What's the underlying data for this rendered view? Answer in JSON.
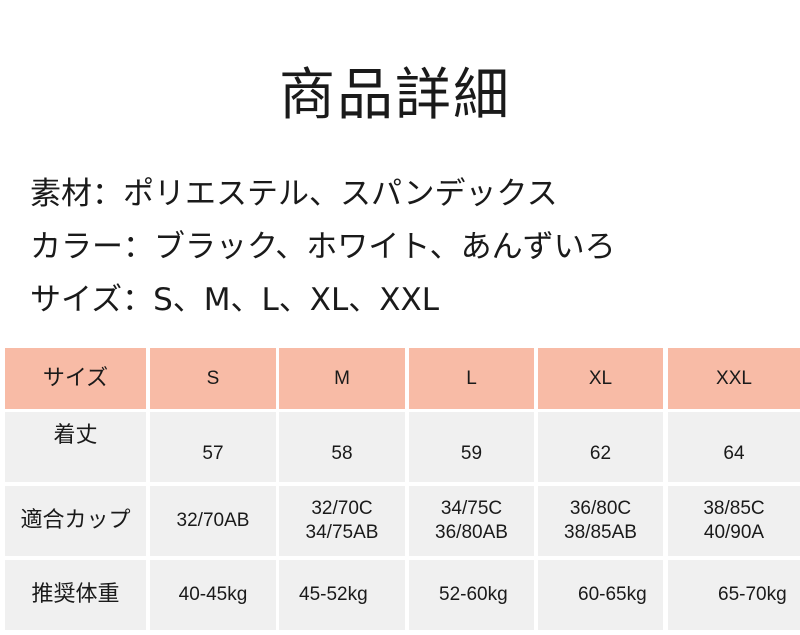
{
  "title": "商品詳細",
  "specs": [
    "素材：ポリエステル、スパンデックス",
    "カラー：ブラック、ホワイト、あんずいろ",
    "サイズ：S、M、L、XL、XXL"
  ],
  "table": {
    "header": [
      "サイズ",
      "S",
      "M",
      "L",
      "XL",
      "XXL"
    ],
    "rows": [
      [
        "着丈",
        "57",
        "58",
        "59",
        "62",
        "64"
      ],
      [
        "適合カップ",
        "32/70AB",
        "32/70C\n34/75AB",
        "34/75C\n36/80AB",
        "36/80C\n38/85AB",
        "38/85C\n40/90A"
      ],
      [
        "推奨体重",
        "40-45kg",
        "45-52kg",
        "52-60kg",
        "60-65kg",
        "65-70kg"
      ]
    ]
  },
  "colors": {
    "header_bg": "#f8bba6",
    "cell_bg": "#f0f0f0"
  }
}
